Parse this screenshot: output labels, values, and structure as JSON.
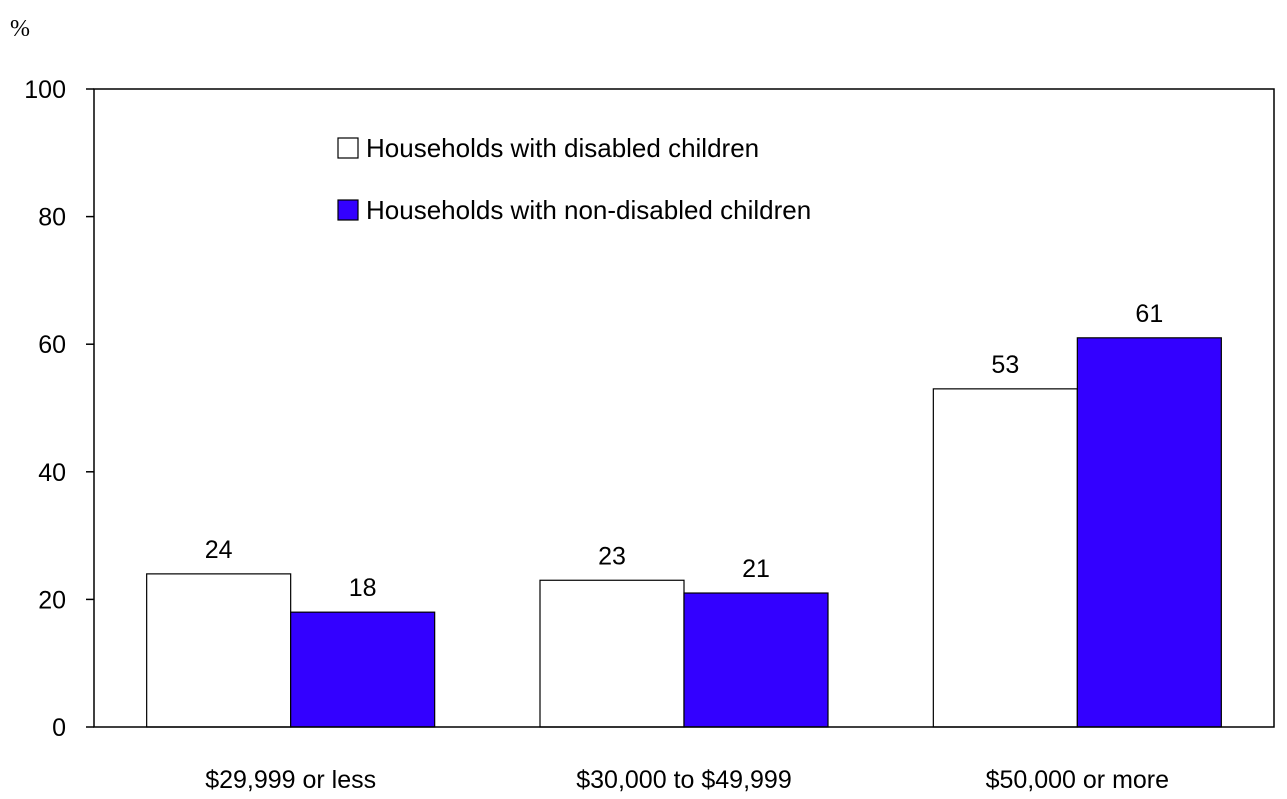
{
  "chart_data": {
    "type": "bar",
    "unit_label": "%",
    "categories": [
      "$29,999 or less",
      "$30,000 to $49,999",
      "$50,000 or more"
    ],
    "series": [
      {
        "name": "Households with disabled children",
        "values": [
          24,
          23,
          53
        ],
        "color": "#ffffff"
      },
      {
        "name": "Households with non-disabled children",
        "values": [
          18,
          21,
          61
        ],
        "color": "#3300ff"
      }
    ],
    "ylim": [
      0,
      100
    ],
    "yticks": [
      0,
      20,
      40,
      60,
      80,
      100
    ],
    "grid": false,
    "legend": "top-center"
  }
}
